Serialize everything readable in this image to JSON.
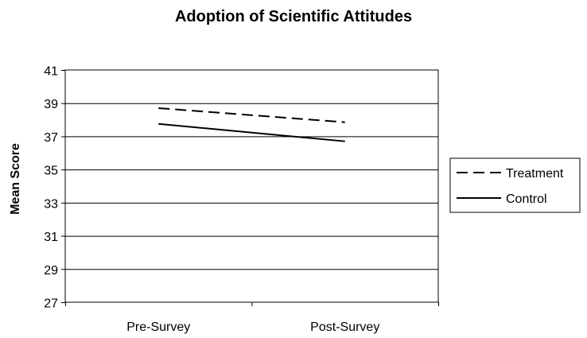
{
  "chart_data": {
    "type": "line",
    "title": "Adoption of Scientific Attitudes",
    "xlabel": "",
    "ylabel": "Mean Score",
    "categories": [
      "Pre-Survey",
      "Post-Survey"
    ],
    "ylim": [
      27,
      41
    ],
    "yticks": [
      27,
      29,
      31,
      33,
      35,
      37,
      39,
      41
    ],
    "grid": "horizontal",
    "legend": "right",
    "series": [
      {
        "name": "Treatment",
        "values": [
          38.7,
          37.85
        ],
        "style": "dashed",
        "color": "#000000"
      },
      {
        "name": "Control",
        "values": [
          37.75,
          36.7
        ],
        "style": "solid",
        "color": "#000000"
      }
    ]
  }
}
